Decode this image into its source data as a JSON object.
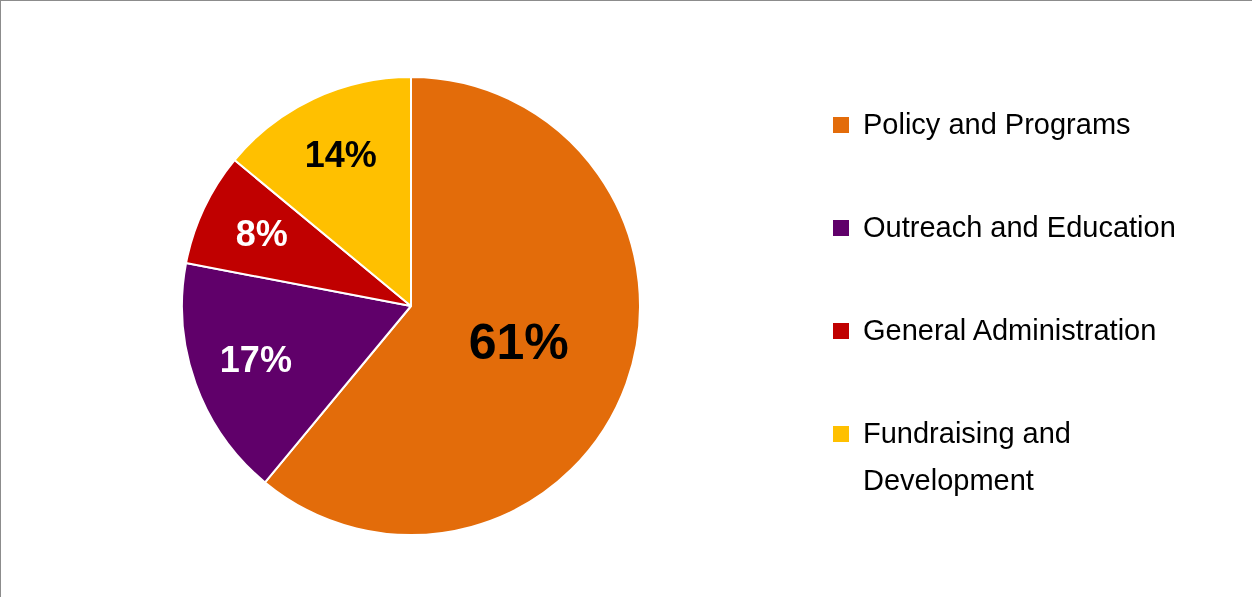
{
  "chart_data": {
    "type": "pie",
    "categories": [
      "Policy and Programs",
      "Outreach and Education",
      "General Administration",
      "Fundraising and Development"
    ],
    "values": [
      61,
      17,
      8,
      14
    ],
    "colors": [
      "#e36c0a",
      "#60006a",
      "#c00000",
      "#ffc000"
    ],
    "value_labels": [
      "61%",
      "17%",
      "8%",
      "14%"
    ],
    "legend": "right"
  }
}
